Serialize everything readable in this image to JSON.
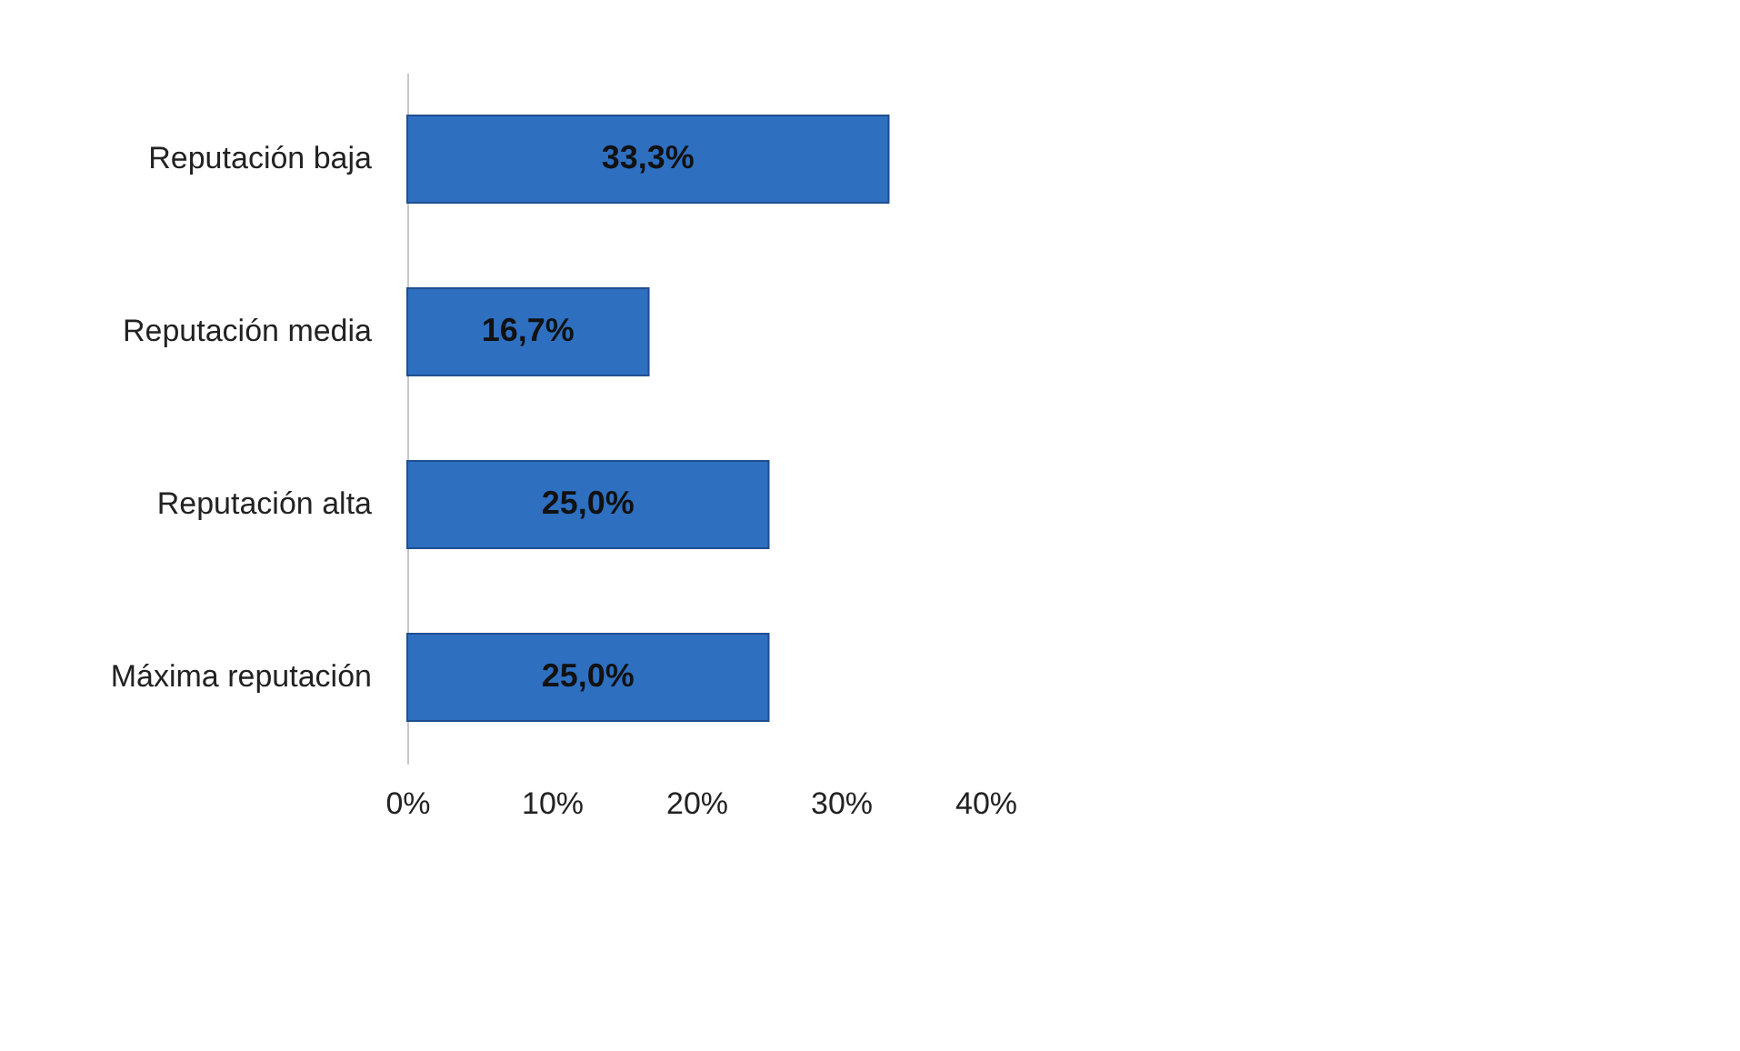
{
  "chart_data": {
    "type": "bar",
    "orientation": "horizontal",
    "categories": [
      "Reputación baja",
      "Reputación media",
      "Reputación alta",
      "Máxima reputación"
    ],
    "values": [
      33.3,
      16.7,
      25.0,
      25.0
    ],
    "value_labels": [
      "33,3%",
      "16,7%",
      "25,0%",
      "25,0%"
    ],
    "color": "#2e6fc0",
    "xlim": [
      0,
      40
    ],
    "xticks": [
      {
        "value": 0,
        "label": "0%"
      },
      {
        "value": 10,
        "label": "10%"
      },
      {
        "value": 20,
        "label": "20%"
      },
      {
        "value": 30,
        "label": "30%"
      },
      {
        "value": 40,
        "label": "40%"
      }
    ],
    "grid": false
  }
}
